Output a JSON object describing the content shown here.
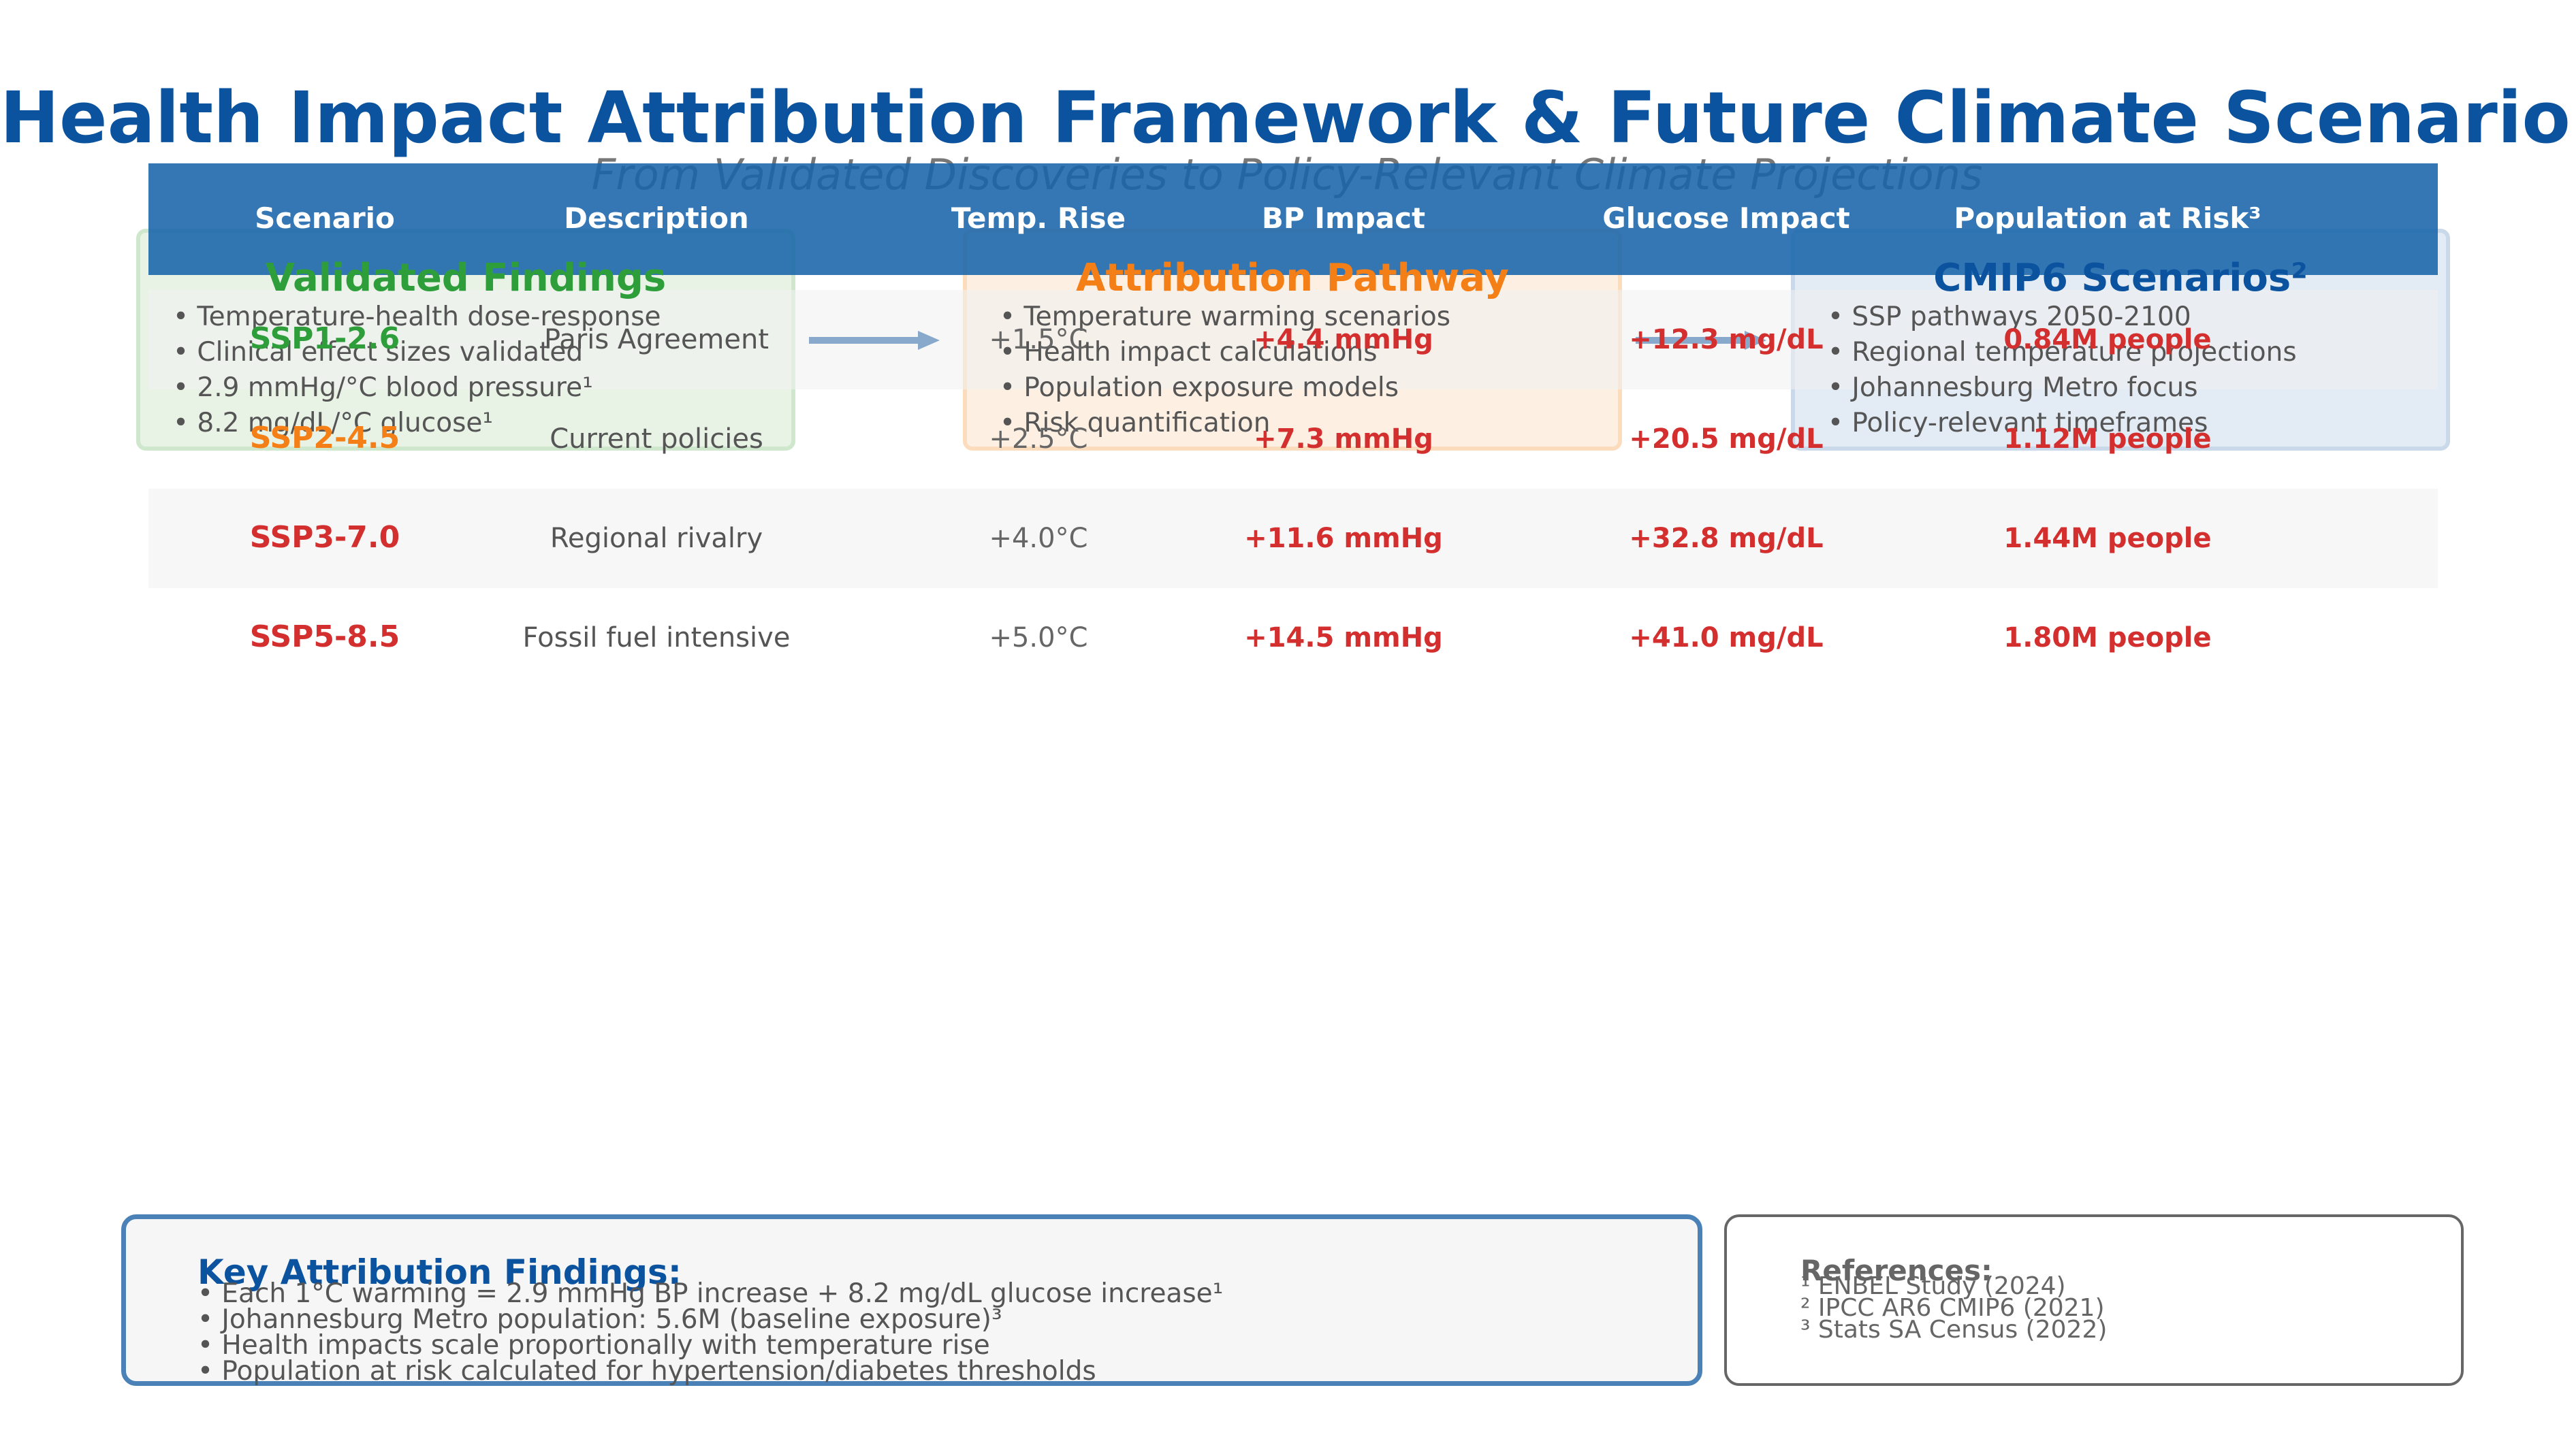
{
  "header": {
    "title": "Health Impact Attribution Framework & Future Climate Scenarios",
    "subtitle": "From Validated Discoveries to Policy-Relevant Climate Projections"
  },
  "framework": {
    "validated": {
      "title": "Validated Findings",
      "items": [
        "• Temperature-health dose-response",
        "• Clinical effect sizes validated",
        "• 2.9 mmHg/°C blood pressure¹",
        "• 8.2 mg/dL/°C glucose¹"
      ],
      "color": "#2e9e3a"
    },
    "pathway": {
      "title": "Attribution Pathway",
      "items": [
        "• Temperature warming scenarios",
        "• Health impact calculations",
        "• Population exposure models",
        "• Risk quantification"
      ],
      "color": "#f57f17"
    },
    "cmip6": {
      "title": "CMIP6 Scenarios²",
      "items": [
        "• SSP pathways 2050-2100",
        "• Regional temperature projections",
        "• Johannesburg Metro focus",
        "• Policy-relevant timeframes"
      ],
      "color": "#0b539e"
    },
    "arrow_color": "#0b539e"
  },
  "table": {
    "headers": [
      "Scenario",
      "Description",
      "Temp. Rise",
      "BP Impact",
      "Glucose Impact",
      "Population at Risk³"
    ],
    "rows": [
      {
        "scenario": "SSP1-2.6",
        "description": "Paris Agreement",
        "temp": "+1.5°C",
        "bp": "+4.4 mmHg",
        "glucose": "+12.3 mg/dL",
        "population": "0.84M people",
        "color": "#2e9e3a"
      },
      {
        "scenario": "SSP2-4.5",
        "description": "Current policies",
        "temp": "+2.5°C",
        "bp": "+7.3 mmHg",
        "glucose": "+20.5 mg/dL",
        "population": "1.12M people",
        "color": "#f57f17"
      },
      {
        "scenario": "SSP3-7.0",
        "description": "Regional rivalry",
        "temp": "+4.0°C",
        "bp": "+11.6 mmHg",
        "glucose": "+32.8 mg/dL",
        "population": "1.44M people",
        "color": "#d32f2f"
      },
      {
        "scenario": "SSP5-8.5",
        "description": "Fossil fuel intensive",
        "temp": "+5.0°C",
        "bp": "+14.5 mmHg",
        "glucose": "+41.0 mg/dL",
        "population": "1.80M people",
        "color": "#d32f2f"
      }
    ],
    "header_color": "#1864aa",
    "impact_color": "#d32f2f"
  },
  "key_findings": {
    "title": "Key Attribution Findings:",
    "items": [
      "• Each 1°C warming = 2.9 mmHg BP increase + 8.2 mg/dL glucose increase¹",
      "• Johannesburg Metro population: 5.6M (baseline exposure)³",
      "• Health impacts scale proportionally with temperature rise",
      "• Population at risk calculated for hypertension/diabetes thresholds"
    ]
  },
  "references": {
    "title": "References:",
    "items": [
      "¹ ENBEL Study (2024)",
      "² IPCC AR6 CMIP6 (2021)",
      "³ Stats SA Census (2022)"
    ]
  }
}
